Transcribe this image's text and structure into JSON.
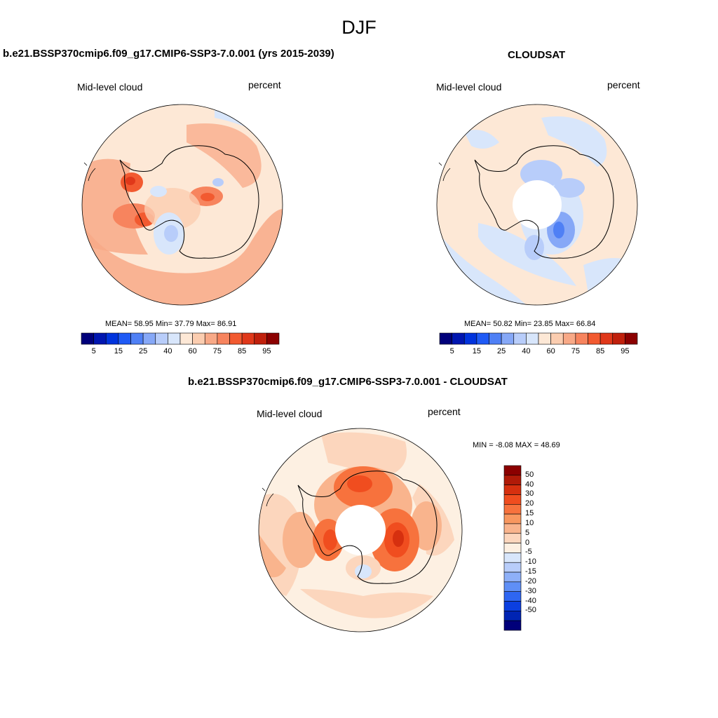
{
  "figure": {
    "title": "DJF"
  },
  "panels": [
    {
      "title": "b.e21.BSSP370cmip6.f09_g17.CMIP6-SSP3-7.0.001 (yrs 2015-2039)",
      "left_label": "Mid-level cloud",
      "right_label": "percent",
      "stats": "MEAN=  58.95  Min=  37.79  Max=  86.91"
    },
    {
      "title": "CLOUDSAT",
      "left_label": "Mid-level cloud",
      "right_label": "percent",
      "stats": "MEAN=  50.82  Min=  23.85  Max=  66.84"
    },
    {
      "title": "b.e21.BSSP370cmip6.f09_g17.CMIP6-SSP3-7.0.001 - CLOUDSAT",
      "left_label": "Mid-level cloud",
      "right_label": "percent",
      "stats": "MIN =  -8.08 MAX =  48.69"
    }
  ],
  "colorbar_abs": {
    "colors": [
      "#00007a",
      "#0016b0",
      "#0033dd",
      "#1f5af5",
      "#4f80f5",
      "#86a8f7",
      "#b8cdfa",
      "#d8e6fb",
      "#fde8d6",
      "#fbcdb0",
      "#f8a987",
      "#f7845e",
      "#f25a30",
      "#e0381a",
      "#c0200c",
      "#8b0000"
    ],
    "tick_labels": [
      "5",
      "15",
      "25",
      "40",
      "60",
      "75",
      "85",
      "95"
    ]
  },
  "colorbar_diff": {
    "colors": [
      "#8b0000",
      "#b01a08",
      "#d6300f",
      "#f04d1f",
      "#f7723d",
      "#f8975f",
      "#f9b48d",
      "#fcd6bd",
      "#fdf0e2",
      "#d8e6fb",
      "#b8cdfa",
      "#8eb0f8",
      "#5f8ff6",
      "#2e66f2",
      "#0b3fe0",
      "#0024b3",
      "#00007a"
    ],
    "tick_labels": [
      "50",
      "40",
      "30",
      "20",
      "15",
      "10",
      "5",
      "0",
      "-5",
      "-10",
      "-15",
      "-20",
      "-30",
      "-40",
      "-50"
    ]
  }
}
